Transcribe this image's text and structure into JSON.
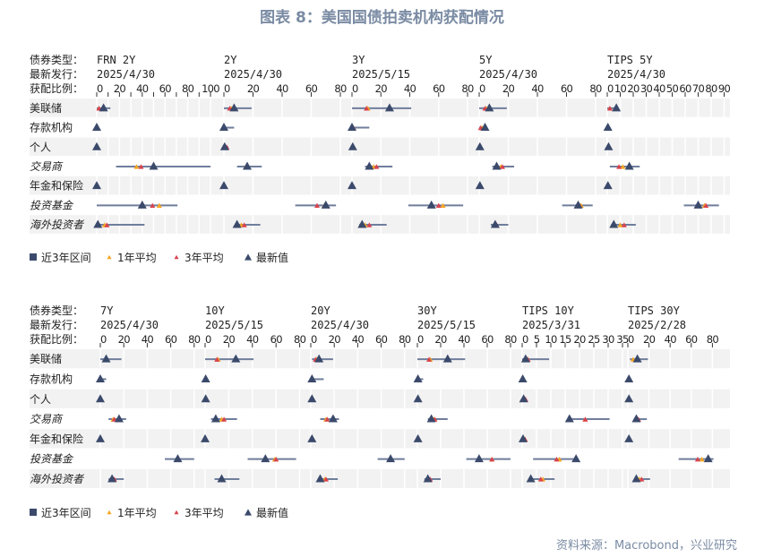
{
  "title": "图表 8：美国国债拍卖机构获配情况",
  "source": "资料来源：Macrobond，兴业研究",
  "header_labels": {
    "bond_type": "债券类型：",
    "latest_issue": "最新发行：",
    "allotment": "获配比例："
  },
  "legend": [
    {
      "label": "近3年区间",
      "symbol": "square",
      "color": "#3b4a6b"
    },
    {
      "label": "1年平均",
      "symbol": "triangle",
      "color": "#f5a623"
    },
    {
      "label": "3年平均",
      "symbol": "triangle",
      "color": "#d9434e"
    },
    {
      "label": "最新值",
      "symbol": "triangle",
      "color": "#3b4a6b"
    }
  ],
  "colors": {
    "range": "#6f7e9c",
    "avg_1y": "#f5a623",
    "avg_3y": "#d9434e",
    "latest": "#3b4a6b",
    "band": "#f2f2f2"
  },
  "chart_data": {
    "type": "range-dot",
    "categories": [
      "美联储",
      "存款机构",
      "个人",
      "交易商",
      "年金和保险",
      "投资基金",
      "海外投资者"
    ],
    "value_fields": [
      "range_low",
      "range_high",
      "avg_1y",
      "avg_3y",
      "latest"
    ],
    "panels": [
      {
        "bonds": [
          {
            "name": "FRN 2Y",
            "date": "2025/4/30",
            "ticks": [
              0,
              20,
              40,
              60,
              80,
              100
            ],
            "rows": [
              [
                0,
                12,
                2,
                2,
                6
              ],
              [
                0,
                0,
                0,
                0,
                0
              ],
              [
                0,
                0,
                0,
                0,
                0
              ],
              [
                17,
                100,
                35,
                39,
                50
              ],
              [
                0,
                0,
                0,
                0,
                0
              ],
              [
                0,
                71,
                55,
                49,
                40
              ],
              [
                0,
                42,
                7,
                9,
                1
              ]
            ]
          },
          {
            "name": "2Y",
            "date": "2025/4/30",
            "ticks": [
              0,
              20,
              40,
              60,
              80
            ],
            "rows": [
              [
                0,
                19,
                5,
                4,
                7
              ],
              [
                0,
                7,
                0.5,
                0.5,
                0
              ],
              [
                0,
                3,
                1,
                2,
                0.5
              ],
              [
                9,
                26,
                15,
                16,
                16
              ],
              [
                0,
                0,
                0,
                0,
                0
              ],
              [
                49,
                77,
                69,
                64,
                70
              ],
              [
                8,
                25,
                12,
                14,
                9
              ]
            ]
          },
          {
            "name": "3Y",
            "date": "2025/5/15",
            "ticks": [
              0,
              20,
              40,
              60,
              80
            ],
            "rows": [
              [
                0,
                41,
                11,
                10,
                26
              ],
              [
                0,
                12,
                1,
                1,
                0
              ],
              [
                0,
                1,
                0.5,
                0.5,
                0.5
              ],
              [
                9,
                28,
                15,
                17,
                12
              ],
              [
                0,
                0,
                0,
                0,
                0
              ],
              [
                39,
                77,
                63,
                60,
                55
              ],
              [
                5,
                24,
                9,
                12,
                7
              ]
            ]
          },
          {
            "name": "5Y",
            "date": "2025/4/30",
            "ticks": [
              0,
              20,
              40,
              60,
              80
            ],
            "rows": [
              [
                0,
                19,
                5,
                4,
                7
              ],
              [
                0,
                5,
                2,
                1,
                4
              ],
              [
                0,
                1,
                0.5,
                0.5,
                0.5
              ],
              [
                9,
                24,
                15,
                16,
                12
              ],
              [
                0,
                1,
                0.5,
                0.5,
                0.5
              ],
              [
                57,
                78,
                70,
                69,
                68
              ],
              [
                8,
                20,
                11,
                12,
                11
              ]
            ]
          },
          {
            "name": "TIPS 5Y",
            "date": "2025/4/30",
            "ticks": [
              0,
              10,
              20,
              30,
              40,
              50,
              60,
              70,
              80,
              90
            ],
            "rows": [
              [
                0,
                8,
                2,
                2,
                7
              ],
              [
                0,
                1,
                0.5,
                0.5,
                0.5
              ],
              [
                0,
                1,
                1,
                1,
                1
              ],
              [
                2,
                25,
                12,
                9,
                17
              ],
              [
                0,
                1,
                0.5,
                0.5,
                0.5
              ],
              [
                59,
                86,
                75,
                76,
                70
              ],
              [
                3,
                22,
                10,
                13,
                5
              ]
            ]
          }
        ]
      },
      {
        "bonds": [
          {
            "name": "7Y",
            "date": "2025/4/30",
            "ticks": [
              0,
              20,
              40,
              60,
              80
            ],
            "rows": [
              [
                0,
                18,
                4,
                4,
                5
              ],
              [
                0,
                5,
                0.5,
                0.5,
                0
              ],
              [
                0,
                0,
                0,
                0,
                0
              ],
              [
                7,
                22,
                11,
                12,
                16
              ],
              [
                0,
                0,
                0,
                0,
                0
              ],
              [
                55,
                80,
                67,
                67,
                66
              ],
              [
                7,
                20,
                11,
                12,
                10
              ]
            ]
          },
          {
            "name": "10Y",
            "date": "2025/5/15",
            "ticks": [
              0,
              20,
              40,
              60,
              80
            ],
            "rows": [
              [
                0,
                41,
                11,
                10,
                26
              ],
              [
                0,
                2,
                1,
                1,
                0.5
              ],
              [
                0,
                1,
                0.5,
                0.5,
                0.5
              ],
              [
                5,
                27,
                14,
                16,
                9
              ],
              [
                0,
                1,
                0.5,
                0.5,
                0
              ],
              [
                36,
                77,
                59,
                60,
                51
              ],
              [
                8,
                29,
                14,
                14,
                14
              ]
            ]
          },
          {
            "name": "20Y",
            "date": "2025/4/30",
            "ticks": [
              0,
              20,
              40,
              60,
              80
            ],
            "rows": [
              [
                1,
                19,
                5,
                4,
                7
              ],
              [
                0,
                11,
                1,
                1,
                1
              ],
              [
                0,
                1,
                1,
                1,
                1
              ],
              [
                8,
                24,
                13,
                14,
                19
              ],
              [
                0,
                2,
                1,
                2,
                1
              ],
              [
                57,
                80,
                68,
                69,
                68
              ],
              [
                6,
                23,
                12,
                13,
                8
              ]
            ]
          },
          {
            "name": "30Y",
            "date": "2025/5/15",
            "ticks": [
              0,
              20,
              40,
              60,
              80
            ],
            "rows": [
              [
                0,
                41,
                11,
                10,
                26
              ],
              [
                0,
                5,
                0.5,
                0.5,
                0.5
              ],
              [
                0,
                1,
                0.5,
                0.5,
                0.5
              ],
              [
                9,
                26,
                14,
                15,
                12
              ],
              [
                0,
                1,
                0.5,
                0.5,
                0.5
              ],
              [
                42,
                80,
                64,
                64,
                53
              ],
              [
                6,
                20,
                10,
                11,
                9
              ]
            ]
          },
          {
            "name": "TIPS 10Y",
            "date": "2025/3/31",
            "ticks": [
              0,
              5,
              10,
              15,
              20,
              25,
              30,
              35
            ],
            "rows": [
              [
                0,
                9.4,
                2,
                2,
                1.2
              ],
              [
                0,
                0.5,
                0.2,
                0.2,
                0.2
              ],
              [
                0,
                1.2,
                1,
                1.2,
                0.5
              ],
              [
                16.5,
                30.5,
                22,
                22,
                16.5
              ],
              [
                0,
                1,
                1,
                1,
                0.3
              ],
              [
                3.8,
                18.8,
                13,
                12,
                18.8
              ],
              [
                2.7,
                11.3,
                7.2,
                6.5,
                3
              ]
            ]
          },
          {
            "name": "TIPS 30Y",
            "date": "2025/2/28",
            "ticks": [
              0,
              20,
              40,
              60,
              80
            ],
            "rows": [
              [
                2,
                19,
                5,
                8,
                9
              ],
              [
                0,
                1,
                1,
                1,
                1
              ],
              [
                0,
                1,
                1,
                1,
                1
              ],
              [
                6,
                18,
                9,
                10,
                8
              ],
              [
                0,
                2,
                1,
                2,
                1
              ],
              [
                48,
                81,
                70,
                66,
                76
              ],
              [
                6,
                21,
                11,
                13,
                8
              ]
            ]
          }
        ]
      }
    ]
  }
}
